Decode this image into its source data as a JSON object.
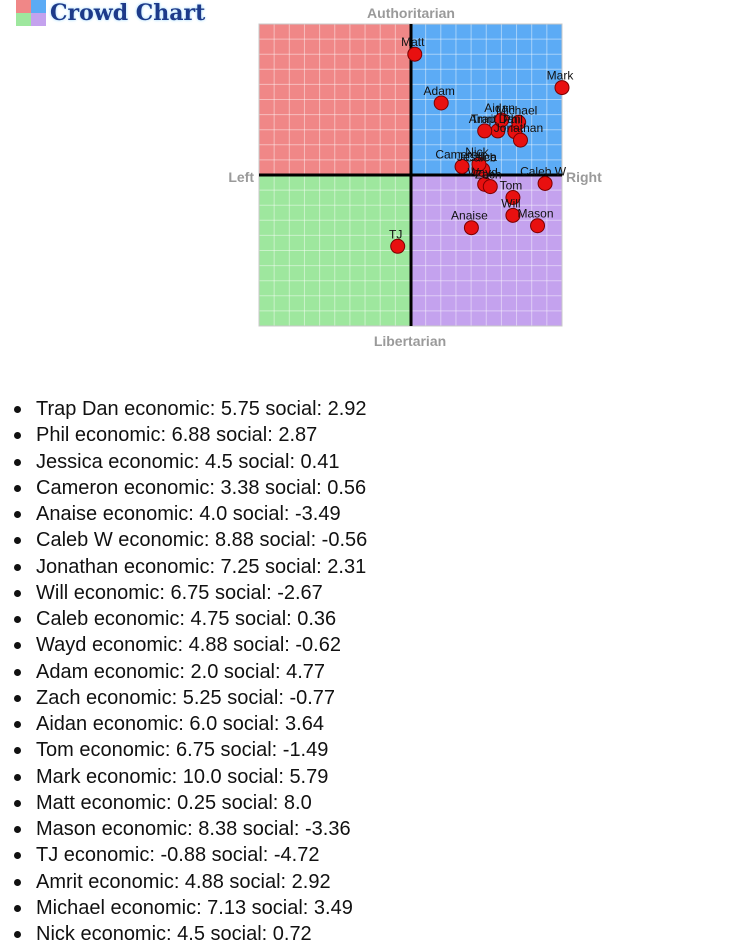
{
  "app": {
    "title": "Crowd Chart",
    "logo": "quadrant-icon"
  },
  "colors": {
    "auth_left": "#f08787",
    "auth_right": "#5cabf5",
    "lib_left": "#9ee79e",
    "lib_right": "#c4a2ee",
    "point": "#e81010"
  },
  "chart_data": {
    "type": "scatter",
    "xlabel_left": "Left",
    "xlabel_right": "Right",
    "ylabel_top": "Authoritarian",
    "ylabel_bottom": "Libertarian",
    "xlim": [
      -10,
      10
    ],
    "ylim": [
      -10,
      10
    ],
    "grid": true,
    "points": [
      {
        "name": "Trap Dan",
        "x": 5.75,
        "y": 2.92
      },
      {
        "name": "Phil",
        "x": 6.88,
        "y": 2.87
      },
      {
        "name": "Jessica",
        "x": 4.5,
        "y": 0.41
      },
      {
        "name": "Cameron",
        "x": 3.38,
        "y": 0.56
      },
      {
        "name": "Anaise",
        "x": 4.0,
        "y": -3.49
      },
      {
        "name": "Caleb W",
        "x": 8.88,
        "y": -0.56
      },
      {
        "name": "Jonathan",
        "x": 7.25,
        "y": 2.31
      },
      {
        "name": "Will",
        "x": 6.75,
        "y": -2.67
      },
      {
        "name": "Caleb",
        "x": 4.75,
        "y": 0.36
      },
      {
        "name": "Wayd",
        "x": 4.88,
        "y": -0.62
      },
      {
        "name": "Adam",
        "x": 2.0,
        "y": 4.77
      },
      {
        "name": "Zach",
        "x": 5.25,
        "y": -0.77
      },
      {
        "name": "Aidan",
        "x": 6.0,
        "y": 3.64
      },
      {
        "name": "Tom",
        "x": 6.75,
        "y": -1.49
      },
      {
        "name": "Mark",
        "x": 10.0,
        "y": 5.79
      },
      {
        "name": "Matt",
        "x": 0.25,
        "y": 8.0
      },
      {
        "name": "Mason",
        "x": 8.38,
        "y": -3.36
      },
      {
        "name": "TJ",
        "x": -0.88,
        "y": -4.72
      },
      {
        "name": "Amrit",
        "x": 4.88,
        "y": 2.92
      },
      {
        "name": "Michael",
        "x": 7.13,
        "y": 3.49
      },
      {
        "name": "Nick",
        "x": 4.5,
        "y": 0.72
      }
    ]
  },
  "list_items": [
    "Trap Dan economic: 5.75 social: 2.92",
    "Phil economic: 6.88 social: 2.87",
    "Jessica economic: 4.5 social: 0.41",
    "Cameron economic: 3.38 social: 0.56",
    "Anaise economic: 4.0 social: -3.49",
    "Caleb W economic: 8.88 social: -0.56",
    "Jonathan economic: 7.25 social: 2.31",
    "Will economic: 6.75 social: -2.67",
    "Caleb economic: 4.75 social: 0.36",
    "Wayd economic: 4.88 social: -0.62",
    "Adam economic: 2.0 social: 4.77",
    "Zach economic: 5.25 social: -0.77",
    "Aidan economic: 6.0 social: 3.64",
    "Tom economic: 6.75 social: -1.49",
    "Mark economic: 10.0 social: 5.79",
    "Matt economic: 0.25 social: 8.0",
    "Mason economic: 8.38 social: -3.36",
    "TJ economic: -0.88 social: -4.72",
    "Amrit economic: 4.88 social: 2.92",
    "Michael economic: 7.13 social: 3.49",
    "Nick economic: 4.5 social: 0.72"
  ]
}
